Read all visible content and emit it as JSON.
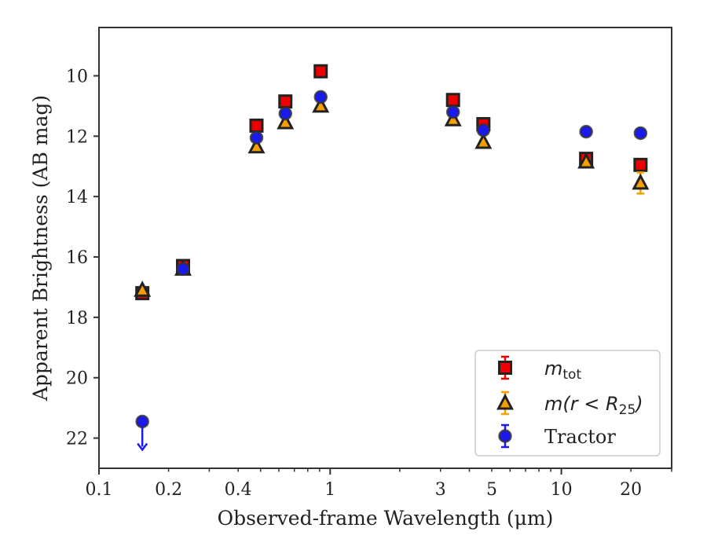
{
  "chart_data": {
    "type": "scatter",
    "title": "",
    "xlabel": "Observed-frame Wavelength (μm)",
    "ylabel": "Apparent Brightness (AB mag)",
    "xscale": "log",
    "xlim": [
      0.1,
      30
    ],
    "ylim": [
      23.0,
      8.4
    ],
    "y_inverted": true,
    "grid": false,
    "legend_position": "lower-right",
    "x_ticks": [
      0.1,
      0.2,
      0.4,
      1,
      3,
      5,
      10,
      20
    ],
    "x_tick_labels": [
      "0.1",
      "0.2",
      "0.4",
      "1",
      "3",
      "5",
      "10",
      "20"
    ],
    "y_ticks": [
      10,
      12,
      14,
      16,
      18,
      20,
      22
    ],
    "y_tick_labels": [
      "10",
      "12",
      "14",
      "16",
      "18",
      "20",
      "22"
    ],
    "series": [
      {
        "name": "m_tot",
        "legend_main": "m",
        "legend_sub": "tot",
        "marker": "square",
        "color": "#ee0000",
        "edge_color": "#222222",
        "points": [
          {
            "x": 0.154,
            "y": 17.2,
            "err": 0.05
          },
          {
            "x": 0.231,
            "y": 16.3,
            "err": 0.05
          },
          {
            "x": 0.48,
            "y": 11.65,
            "err": 0.05
          },
          {
            "x": 0.64,
            "y": 10.85,
            "err": 0.05
          },
          {
            "x": 0.91,
            "y": 9.85,
            "err": 0.05
          },
          {
            "x": 3.4,
            "y": 10.8,
            "err": 0.05
          },
          {
            "x": 4.6,
            "y": 11.6,
            "err": 0.05
          },
          {
            "x": 12.8,
            "y": 12.75,
            "err": 0.08
          },
          {
            "x": 22.0,
            "y": 12.95,
            "err": 0.08
          }
        ]
      },
      {
        "name": "m(r < R25)",
        "legend_main": "m(r < R",
        "legend_sub": "25",
        "legend_end": ")",
        "marker": "triangle",
        "color": "#f5a000",
        "edge_color": "#222222",
        "points": [
          {
            "x": 0.154,
            "y": 17.1,
            "err": 0.05
          },
          {
            "x": 0.231,
            "y": 16.4,
            "err": 0.05
          },
          {
            "x": 0.48,
            "y": 12.35,
            "err": 0.05
          },
          {
            "x": 0.64,
            "y": 11.55,
            "err": 0.05
          },
          {
            "x": 0.91,
            "y": 11.0,
            "err": 0.05
          },
          {
            "x": 3.4,
            "y": 11.45,
            "err": 0.05
          },
          {
            "x": 4.6,
            "y": 12.2,
            "err": 0.05
          },
          {
            "x": 12.8,
            "y": 12.85,
            "err": 0.08
          },
          {
            "x": 22.0,
            "y": 13.55,
            "err": 0.35
          }
        ]
      },
      {
        "name": "Tractor",
        "legend_main": "Tractor",
        "marker": "circle",
        "color": "#1a1aee",
        "edge_color": "#333333",
        "points": [
          {
            "x": 0.154,
            "y": 21.45,
            "err": 0.05,
            "upper_limit": true
          },
          {
            "x": 0.231,
            "y": 16.4,
            "err": 0.05
          },
          {
            "x": 0.48,
            "y": 12.05,
            "err": 0.05
          },
          {
            "x": 0.64,
            "y": 11.25,
            "err": 0.05
          },
          {
            "x": 0.91,
            "y": 10.7,
            "err": 0.05
          },
          {
            "x": 3.4,
            "y": 11.2,
            "err": 0.05
          },
          {
            "x": 4.6,
            "y": 11.8,
            "err": 0.05
          },
          {
            "x": 12.8,
            "y": 11.85,
            "err": 0.05
          },
          {
            "x": 22.0,
            "y": 11.9,
            "err": 0.05
          }
        ]
      }
    ]
  }
}
